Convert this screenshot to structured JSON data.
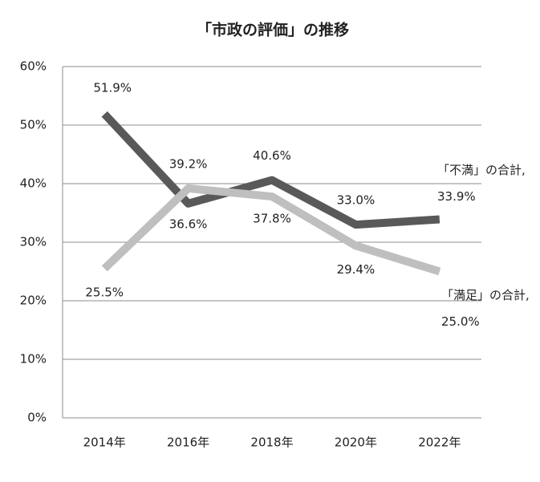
{
  "chart_data": {
    "type": "line",
    "title": "「市政の評価」の推移",
    "categories": [
      "2014年",
      "2016年",
      "2018年",
      "2020年",
      "2022年"
    ],
    "series": [
      {
        "name": "「不満」の合計",
        "color": "#595959",
        "values": [
          51.9,
          36.6,
          40.6,
          33.0,
          33.9
        ],
        "value_labels": [
          "51.9%",
          "36.6%",
          "40.6%",
          "33.0%",
          ", 33.9%"
        ]
      },
      {
        "name": "「満足」の合計",
        "color": "#bfbfbf",
        "values": [
          25.5,
          39.2,
          37.8,
          29.4,
          25.0
        ],
        "value_labels": [
          "25.5%",
          "39.2%",
          "37.8%",
          "29.4%",
          ", 25.0%"
        ]
      }
    ],
    "ylim": [
      0,
      60
    ],
    "yticks": [
      {
        "value": 0,
        "label": "0%"
      },
      {
        "value": 10,
        "label": "10%"
      },
      {
        "value": 20,
        "label": "20%"
      },
      {
        "value": 30,
        "label": "30%"
      },
      {
        "value": 40,
        "label": "40%"
      },
      {
        "value": 50,
        "label": "50%"
      },
      {
        "value": 60,
        "label": "60%"
      }
    ],
    "grid": true
  }
}
